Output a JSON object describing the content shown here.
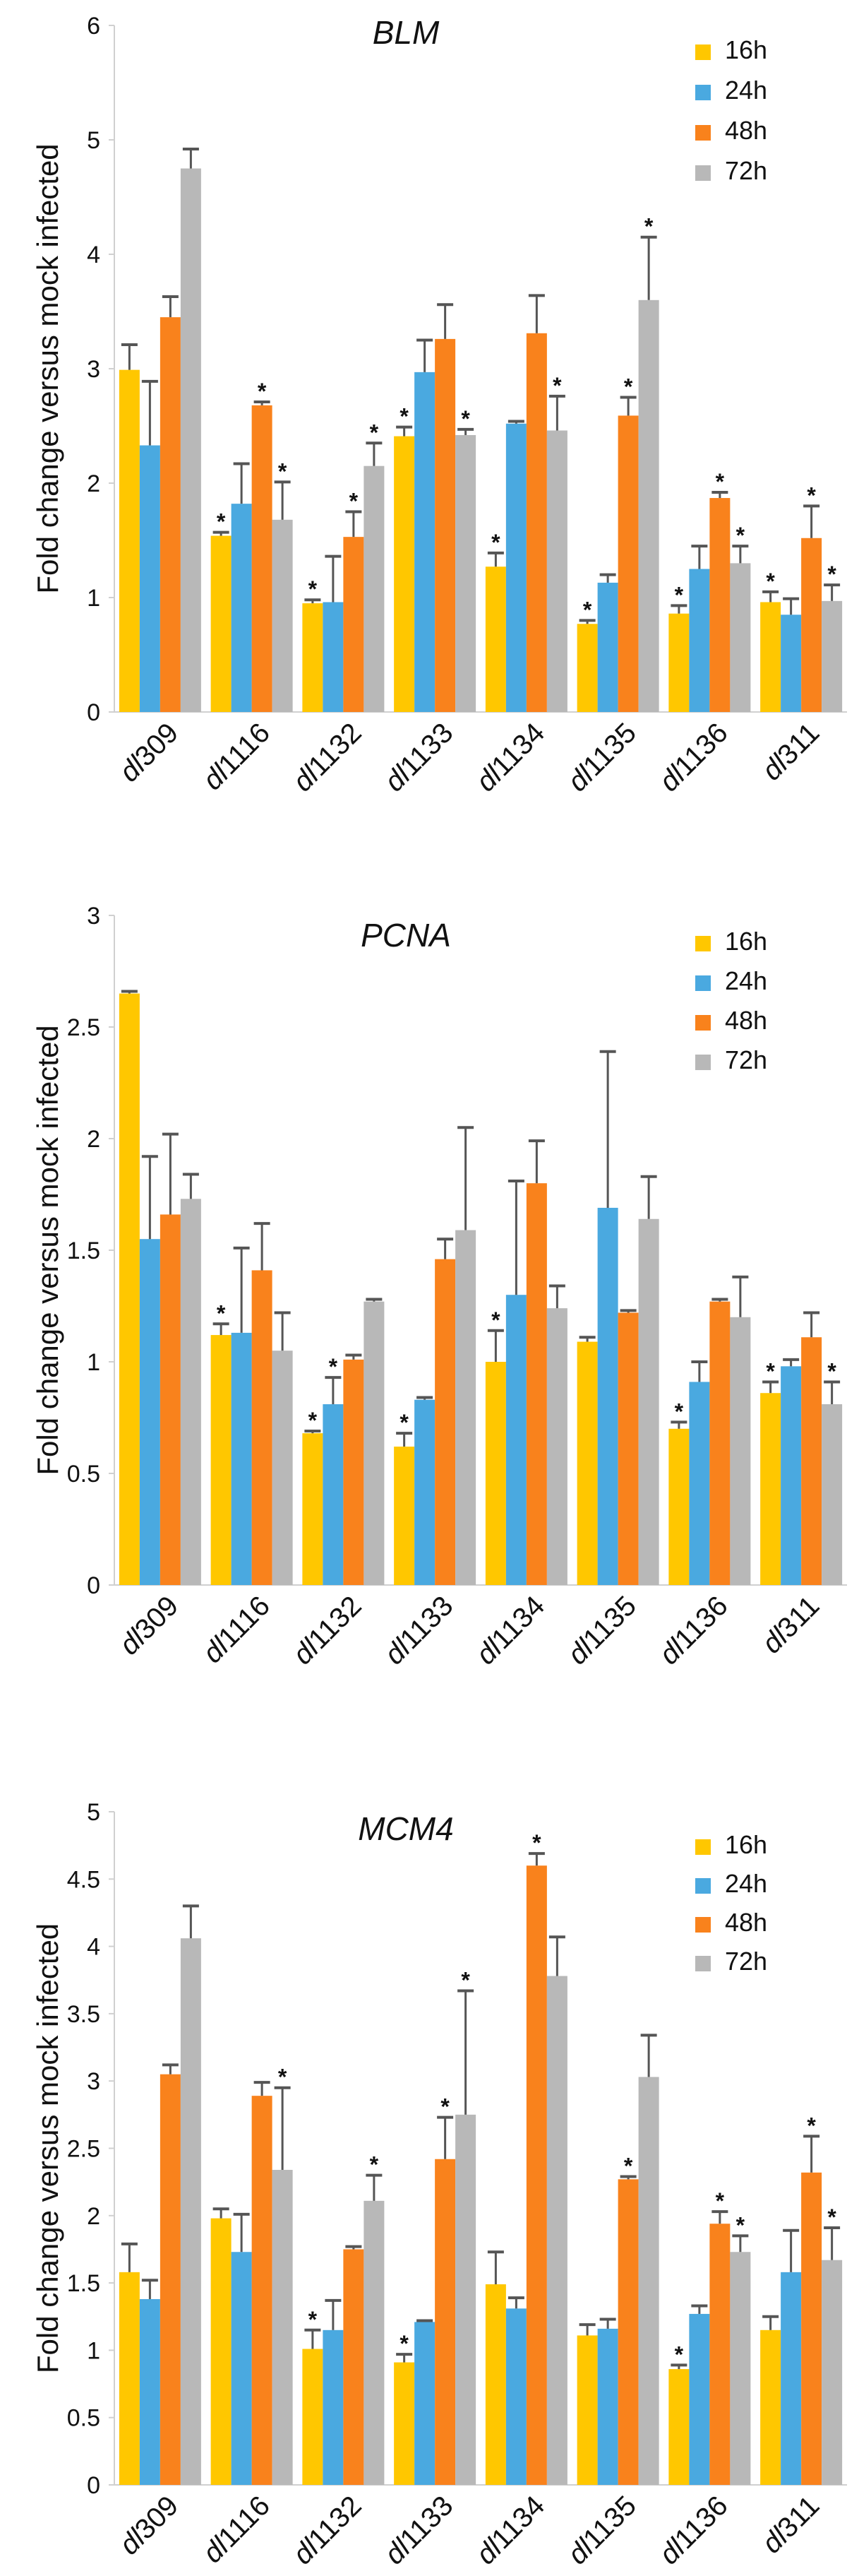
{
  "charts": [
    {
      "type": "bar",
      "title": "BLM",
      "ylabel": "Fold change versus mock infected",
      "xlabel": "",
      "ylim": [
        0,
        6
      ],
      "yticks": [
        "0",
        "1",
        "2",
        "3",
        "4",
        "5",
        "6"
      ],
      "categories": [
        "dl309",
        "dl1116",
        "dl1132",
        "dl1133",
        "dl1134",
        "dl1135",
        "dl1136",
        "dl311"
      ],
      "series": [
        {
          "name": "16h",
          "color": "#FFC700",
          "values": [
            2.99,
            1.54,
            0.95,
            2.41,
            1.27,
            0.77,
            0.86,
            0.96
          ],
          "errors": [
            0.22,
            0.03,
            0.03,
            0.08,
            0.12,
            0.03,
            0.07,
            0.09
          ],
          "sig": [
            false,
            true,
            true,
            true,
            true,
            true,
            true,
            true
          ]
        },
        {
          "name": "24h",
          "color": "#4AA9E0",
          "values": [
            2.33,
            1.82,
            0.96,
            2.97,
            2.52,
            1.13,
            1.25,
            0.85
          ],
          "errors": [
            0.56,
            0.35,
            0.4,
            0.28,
            0.02,
            0.07,
            0.2,
            0.14
          ],
          "sig": [
            false,
            false,
            false,
            false,
            false,
            false,
            false,
            false
          ]
        },
        {
          "name": "48h",
          "color": "#F9821C",
          "values": [
            3.45,
            2.68,
            1.53,
            3.26,
            3.31,
            2.59,
            1.87,
            1.52
          ],
          "errors": [
            0.18,
            0.03,
            0.22,
            0.3,
            0.33,
            0.16,
            0.05,
            0.28
          ],
          "sig": [
            false,
            true,
            true,
            false,
            false,
            true,
            true,
            true
          ]
        },
        {
          "name": "72h",
          "color": "#B8B8B8",
          "values": [
            4.75,
            1.68,
            2.15,
            2.42,
            2.46,
            3.6,
            1.3,
            0.97
          ],
          "errors": [
            0.17,
            0.33,
            0.2,
            0.05,
            0.3,
            0.55,
            0.15,
            0.14
          ],
          "sig": [
            false,
            true,
            true,
            true,
            true,
            true,
            true,
            true
          ]
        }
      ]
    },
    {
      "type": "bar",
      "title": "PCNA",
      "ylabel": "Fold change versus mock infected",
      "xlabel": "",
      "ylim": [
        0,
        3
      ],
      "yticks": [
        "0",
        "0.5",
        "1",
        "1.5",
        "2",
        "2.5",
        "3"
      ],
      "categories": [
        "dl309",
        "dl1116",
        "dl1132",
        "dl1133",
        "dl1134",
        "dl1135",
        "dl1136",
        "dl311"
      ],
      "series": [
        {
          "name": "16h",
          "color": "#FFC700",
          "values": [
            2.65,
            1.12,
            0.68,
            0.62,
            1.0,
            1.09,
            0.7,
            0.86
          ],
          "errors": [
            0.01,
            0.05,
            0.01,
            0.06,
            0.14,
            0.02,
            0.03,
            0.05
          ],
          "sig": [
            false,
            true,
            true,
            true,
            true,
            false,
            true,
            true
          ]
        },
        {
          "name": "24h",
          "color": "#4AA9E0",
          "values": [
            1.55,
            1.13,
            0.81,
            0.83,
            1.3,
            1.69,
            0.91,
            0.98
          ],
          "errors": [
            0.37,
            0.38,
            0.12,
            0.01,
            0.51,
            0.7,
            0.09,
            0.03
          ],
          "sig": [
            false,
            false,
            true,
            false,
            false,
            false,
            false,
            false
          ]
        },
        {
          "name": "48h",
          "color": "#F9821C",
          "values": [
            1.66,
            1.41,
            1.01,
            1.46,
            1.8,
            1.22,
            1.27,
            1.11
          ],
          "errors": [
            0.36,
            0.21,
            0.02,
            0.09,
            0.19,
            0.01,
            0.01,
            0.11
          ],
          "sig": [
            false,
            false,
            false,
            false,
            false,
            false,
            false,
            false
          ]
        },
        {
          "name": "72h",
          "color": "#B8B8B8",
          "values": [
            1.73,
            1.05,
            1.27,
            1.59,
            1.24,
            1.64,
            1.2,
            0.81
          ],
          "errors": [
            0.11,
            0.17,
            0.01,
            0.46,
            0.1,
            0.19,
            0.18,
            0.1
          ],
          "sig": [
            false,
            false,
            false,
            false,
            false,
            false,
            false,
            true
          ]
        }
      ]
    },
    {
      "type": "bar",
      "title": "MCM4",
      "ylabel": "Fold change versus mock infected",
      "xlabel": "",
      "ylim": [
        0,
        5
      ],
      "yticks": [
        "0",
        "0.5",
        "1",
        "1.5",
        "2",
        "2.5",
        "3",
        "3.5",
        "4",
        "4.5",
        "5"
      ],
      "categories": [
        "dl309",
        "dl1116",
        "dl1132",
        "dl1133",
        "dl1134",
        "dl1135",
        "dl1136",
        "dl311"
      ],
      "series": [
        {
          "name": "16h",
          "color": "#FFC700",
          "values": [
            1.58,
            1.98,
            1.01,
            0.91,
            1.49,
            1.11,
            0.86,
            1.15
          ],
          "errors": [
            0.21,
            0.07,
            0.14,
            0.06,
            0.24,
            0.08,
            0.03,
            0.1
          ],
          "sig": [
            false,
            false,
            true,
            true,
            false,
            false,
            true,
            false
          ]
        },
        {
          "name": "24h",
          "color": "#4AA9E0",
          "values": [
            1.38,
            1.73,
            1.15,
            1.21,
            1.31,
            1.16,
            1.27,
            1.58
          ],
          "errors": [
            0.14,
            0.28,
            0.22,
            0.01,
            0.08,
            0.07,
            0.06,
            0.31
          ],
          "sig": [
            false,
            false,
            false,
            false,
            false,
            false,
            false,
            false
          ]
        },
        {
          "name": "48h",
          "color": "#F9821C",
          "values": [
            3.05,
            2.89,
            1.75,
            2.42,
            4.6,
            2.27,
            1.94,
            2.32
          ],
          "errors": [
            0.07,
            0.1,
            0.02,
            0.31,
            0.09,
            0.02,
            0.09,
            0.27
          ],
          "sig": [
            false,
            false,
            false,
            true,
            true,
            true,
            true,
            true
          ]
        },
        {
          "name": "72h",
          "color": "#B8B8B8",
          "values": [
            4.06,
            2.34,
            2.11,
            2.75,
            3.78,
            3.03,
            1.73,
            1.67
          ],
          "errors": [
            0.24,
            0.61,
            0.19,
            0.92,
            0.29,
            0.31,
            0.12,
            0.24
          ],
          "sig": [
            false,
            true,
            true,
            true,
            false,
            false,
            true,
            true
          ]
        }
      ]
    }
  ]
}
